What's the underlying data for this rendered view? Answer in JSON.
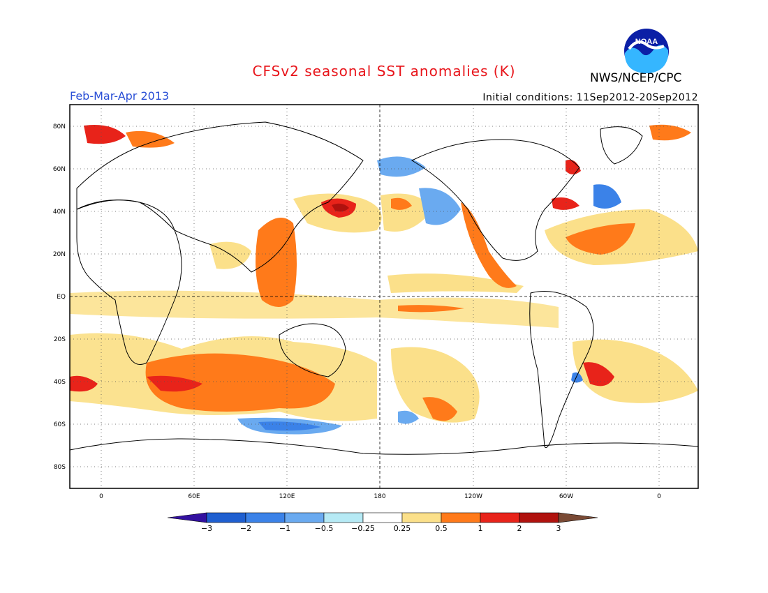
{
  "header": {
    "title": "CFSv2 seasonal SST anomalies (K)",
    "title_color": "#e8141a",
    "agency": "NWS/NCEP/CPC",
    "season": "Feb-Mar-Apr 2013",
    "season_color": "#2a4fd6",
    "initial_conditions": "Initial conditions: 11Sep2012-20Sep2012"
  },
  "logo": {
    "text": "NOAA",
    "icon": "noaa-logo"
  },
  "map": {
    "lat_ticks": [
      "80N",
      "60N",
      "40N",
      "20N",
      "EQ",
      "20S",
      "40S",
      "60S",
      "80S"
    ],
    "lon_ticks": [
      "0",
      "60E",
      "120E",
      "180",
      "120W",
      "60W",
      "0"
    ]
  },
  "colorbar": {
    "labels": [
      "-3",
      "-2",
      "-1",
      "-0.5",
      "-0.25",
      "0.25",
      "0.5",
      "1",
      "2",
      "3"
    ],
    "colors": [
      "#3311a0",
      "#1f5fd0",
      "#3b82e8",
      "#6aaaf0",
      "#b6eaf5",
      "#ffffff",
      "#fbe08a",
      "#ff7a1a",
      "#e8231a",
      "#b0120e",
      "#7a4a35"
    ]
  }
}
